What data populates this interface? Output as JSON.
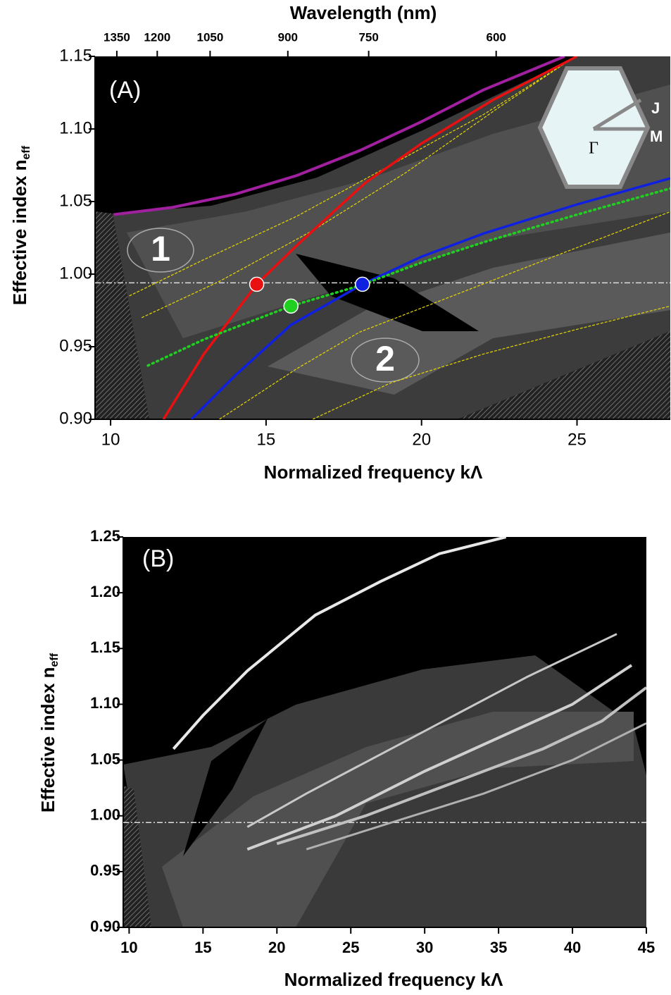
{
  "chart_data": [
    {
      "type": "line",
      "panel_label": "(A)",
      "xlabel": "Normalized frequency kΛ",
      "ylabel": "Effective index n",
      "ylabel_subscript": "eff",
      "x2label": "Wavelength (nm)",
      "xlim": [
        9.5,
        28
      ],
      "ylim": [
        0.9,
        1.15
      ],
      "xticks": [
        10,
        15,
        20,
        25
      ],
      "yticks": [
        {
          "value": 0.9,
          "label": "0.90"
        },
        {
          "value": 0.95,
          "label": "0.95"
        },
        {
          "value": 1.0,
          "label": "1.00"
        },
        {
          "value": 1.05,
          "label": "1.05"
        },
        {
          "value": 1.1,
          "label": "1.10"
        },
        {
          "value": 1.15,
          "label": "1.15"
        }
      ],
      "x2ticks": [
        {
          "value": 10.2,
          "label": "1350"
        },
        {
          "value": 11.5,
          "label": "1200"
        },
        {
          "value": 13.2,
          "label": "1050"
        },
        {
          "value": 15.7,
          "label": "900"
        },
        {
          "value": 18.3,
          "label": "750"
        },
        {
          "value": 22.4,
          "label": "600"
        }
      ],
      "hline": 0.994,
      "series": [
        {
          "color": "#a020a0",
          "style": "solid",
          "width": 4,
          "x": [
            10.1,
            12,
            14,
            16,
            18,
            20,
            22,
            24.6
          ],
          "values": [
            1.041,
            1.046,
            1.055,
            1.068,
            1.085,
            1.105,
            1.127,
            1.15
          ]
        },
        {
          "color": "#e8d800",
          "style": "dashed",
          "width": 1.2,
          "x": [
            10.6,
            13,
            16,
            19,
            22,
            24.6
          ],
          "values": [
            0.985,
            1.01,
            1.04,
            1.075,
            1.11,
            1.145
          ]
        },
        {
          "color": "#e8d800",
          "style": "dashed",
          "width": 1.2,
          "x": [
            11,
            13.5,
            16.5,
            19.5,
            22.5,
            24.6
          ],
          "values": [
            0.97,
            0.995,
            1.03,
            1.07,
            1.115,
            1.145
          ]
        },
        {
          "color": "#e8d800",
          "style": "dashed",
          "width": 1.2,
          "x": [
            13.5,
            16,
            18,
            21,
            24,
            28
          ],
          "values": [
            0.9,
            0.935,
            0.96,
            0.985,
            1.01,
            1.043
          ]
        },
        {
          "color": "#e8d800",
          "style": "dashed",
          "width": 1.2,
          "x": [
            16.5,
            19,
            22,
            25,
            28
          ],
          "values": [
            0.9,
            0.925,
            0.945,
            0.962,
            0.978
          ]
        },
        {
          "color": "#e81010",
          "style": "solid",
          "width": 3.5,
          "x": [
            11.7,
            13,
            14.7,
            16,
            18.2,
            20,
            22.3,
            25
          ],
          "values": [
            0.9,
            0.945,
            0.993,
            1.02,
            1.063,
            1.09,
            1.12,
            1.15
          ]
        },
        {
          "color": "#1020e0",
          "style": "solid",
          "width": 3.5,
          "x": [
            12.6,
            14,
            15.8,
            18.1,
            20,
            22,
            25,
            28
          ],
          "values": [
            0.9,
            0.93,
            0.965,
            0.993,
            1.012,
            1.028,
            1.048,
            1.066
          ]
        },
        {
          "color": "#20d020",
          "style": "dotted",
          "width": 3.5,
          "x": [
            11.2,
            13,
            15.8,
            18,
            20,
            22,
            25,
            28
          ],
          "values": [
            0.937,
            0.955,
            0.978,
            0.992,
            1.008,
            1.022,
            1.041,
            1.059
          ]
        }
      ],
      "points": [
        {
          "x": 14.7,
          "y": 0.993,
          "color": "#e81010"
        },
        {
          "x": 15.8,
          "y": 0.978,
          "color": "#20d020"
        },
        {
          "x": 18.1,
          "y": 0.993,
          "color": "#1020e0"
        }
      ],
      "annotations": [
        "1",
        "2"
      ],
      "inset_labels": [
        "J",
        "M",
        "Γ"
      ]
    },
    {
      "type": "line",
      "panel_label": "(B)",
      "xlabel": "Normalized frequency kΛ",
      "ylabel": "Effective index n",
      "ylabel_subscript": "eff",
      "xlim": [
        9.6,
        45
      ],
      "ylim": [
        0.9,
        1.25
      ],
      "xticks": [
        10,
        15,
        20,
        25,
        30,
        35,
        40,
        45
      ],
      "yticks": [
        {
          "value": 0.9,
          "label": "0.90"
        },
        {
          "value": 0.95,
          "label": "0.95"
        },
        {
          "value": 1.0,
          "label": "1.00"
        },
        {
          "value": 1.05,
          "label": "1.05"
        },
        {
          "value": 1.1,
          "label": "1.10"
        },
        {
          "value": 1.15,
          "label": "1.15"
        },
        {
          "value": 1.2,
          "label": "1.20"
        },
        {
          "value": 1.25,
          "label": "1.25"
        }
      ],
      "hline": 0.994,
      "series": [
        {
          "color": "#e8e8e8",
          "style": "solid",
          "width": 4,
          "x": [
            13,
            15,
            18,
            22.6,
            27,
            31,
            35.5
          ],
          "values": [
            1.06,
            1.09,
            1.13,
            1.18,
            1.21,
            1.235,
            1.25
          ]
        },
        {
          "color": "#c8c8c8",
          "style": "solid",
          "width": 3,
          "x": [
            18,
            22,
            27,
            32,
            37,
            43
          ],
          "values": [
            0.99,
            1.02,
            1.055,
            1.09,
            1.125,
            1.163
          ]
        },
        {
          "color": "#d0d0d0",
          "style": "solid",
          "width": 4,
          "x": [
            18,
            24,
            30,
            35,
            40,
            44
          ],
          "values": [
            0.97,
            1.0,
            1.04,
            1.07,
            1.1,
            1.135
          ]
        },
        {
          "color": "#c0c0c0",
          "style": "solid",
          "width": 4,
          "x": [
            20,
            26,
            32,
            38,
            42,
            45
          ],
          "values": [
            0.975,
            1.0,
            1.03,
            1.06,
            1.085,
            1.115
          ]
        },
        {
          "color": "#b0b0b0",
          "style": "solid",
          "width": 3,
          "x": [
            22,
            28,
            34,
            40,
            45
          ],
          "values": [
            0.97,
            0.995,
            1.02,
            1.05,
            1.083
          ]
        }
      ]
    }
  ]
}
